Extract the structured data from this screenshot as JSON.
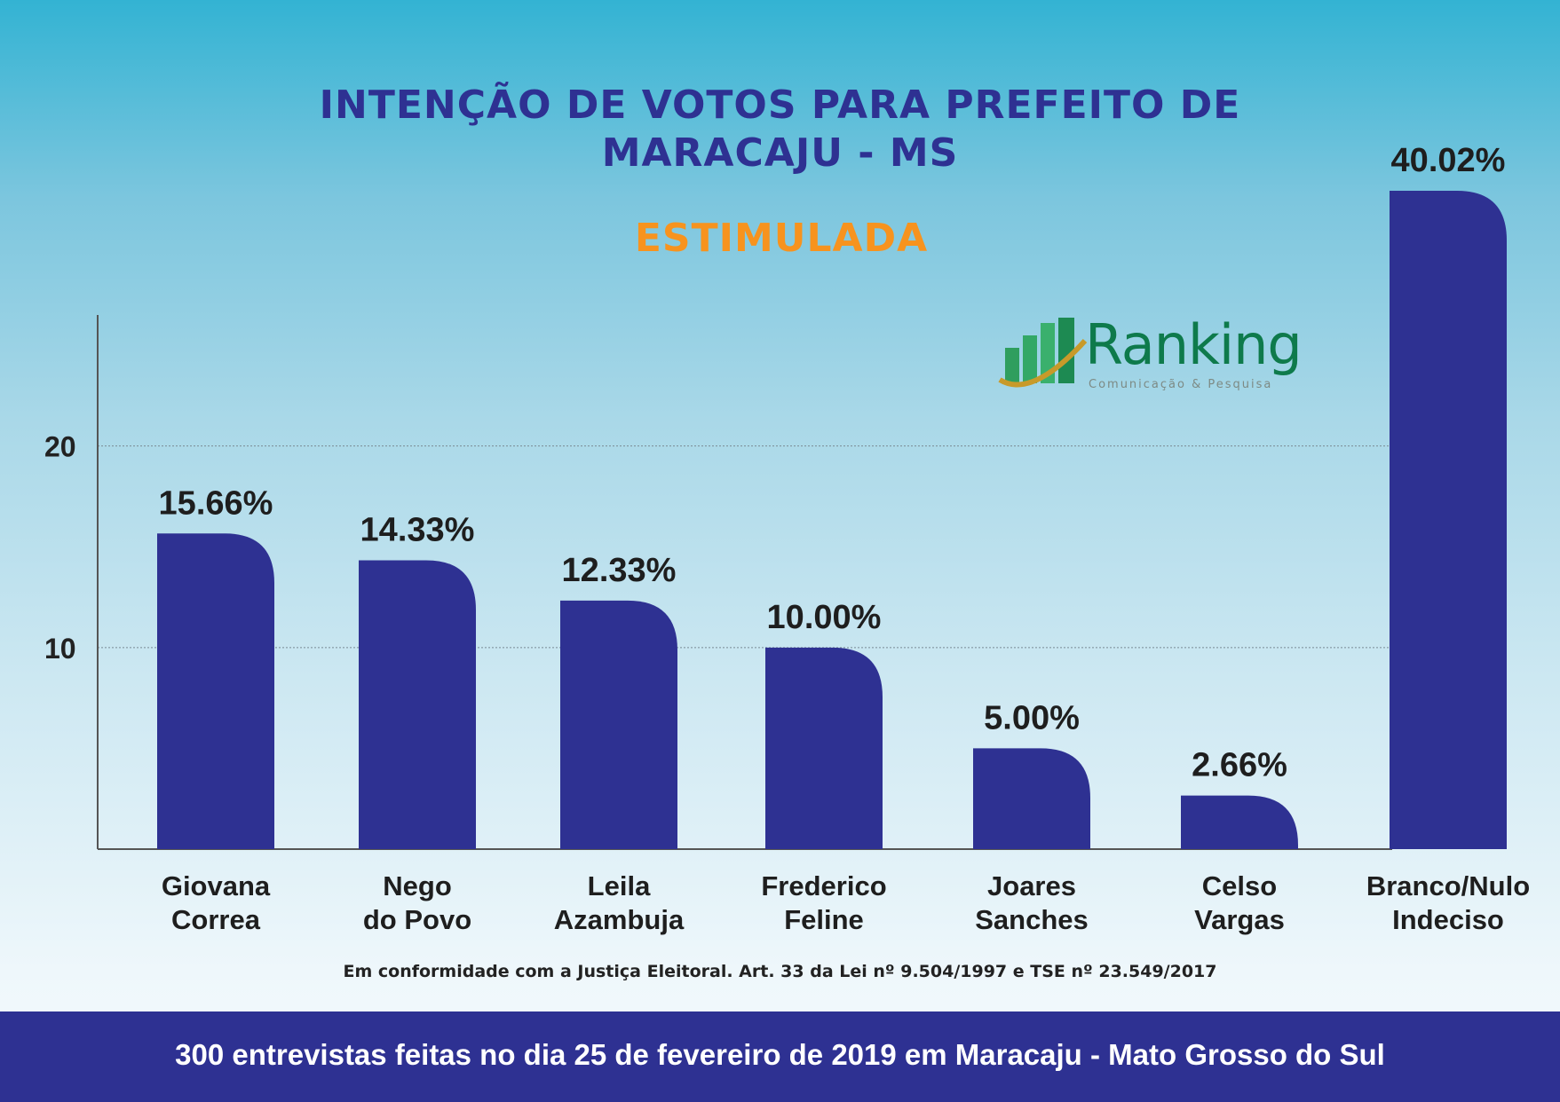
{
  "header": {
    "title_line1": "INTENÇÃO DE VOTOS PARA PREFEITO DE",
    "title_line2": "MARACAJU - MS",
    "subtitle": "ESTIMULADA"
  },
  "logo": {
    "name": "Ranking",
    "tagline": "Comunicação & Pesquisa"
  },
  "chart_data": {
    "type": "bar",
    "title": "INTENÇÃO DE VOTOS PARA PREFEITO DE MARACAJU - MS",
    "subtitle": "ESTIMULADA",
    "categories": [
      [
        "Giovana",
        "Correa"
      ],
      [
        "Nego",
        "do Povo"
      ],
      [
        "Leila",
        "Azambuja"
      ],
      [
        "Frederico",
        "Feline"
      ],
      [
        "Joares",
        "Sanches"
      ],
      [
        "Celso",
        "Vargas"
      ],
      [
        "Branco/Nulo",
        "Indeciso"
      ]
    ],
    "values": [
      15.66,
      14.33,
      12.33,
      10.0,
      5.0,
      2.66,
      40.02
    ],
    "value_labels": [
      "15.66%",
      "14.33%",
      "12.33%",
      "10.00%",
      "5.00%",
      "2.66%",
      "40.02%"
    ],
    "yticks": [
      10,
      20
    ],
    "ylim": [
      0,
      26.5
    ],
    "grid": true,
    "bar_color": "#2e3192",
    "xlabel": "",
    "ylabel": ""
  },
  "footnote": "Em conformidade com a Justiça Eleitoral. Art. 33 da Lei nº 9.504/1997 e TSE nº 23.549/2017",
  "banner": "300 entrevistas feitas no dia 25 de fevereiro de 2019 em Maracaju - Mato Grosso do Sul",
  "colors": {
    "title": "#2e3192",
    "subtitle": "#f7931e",
    "bar": "#2e3192",
    "banner": "#2e3192",
    "logo": "#0e7a4b"
  }
}
